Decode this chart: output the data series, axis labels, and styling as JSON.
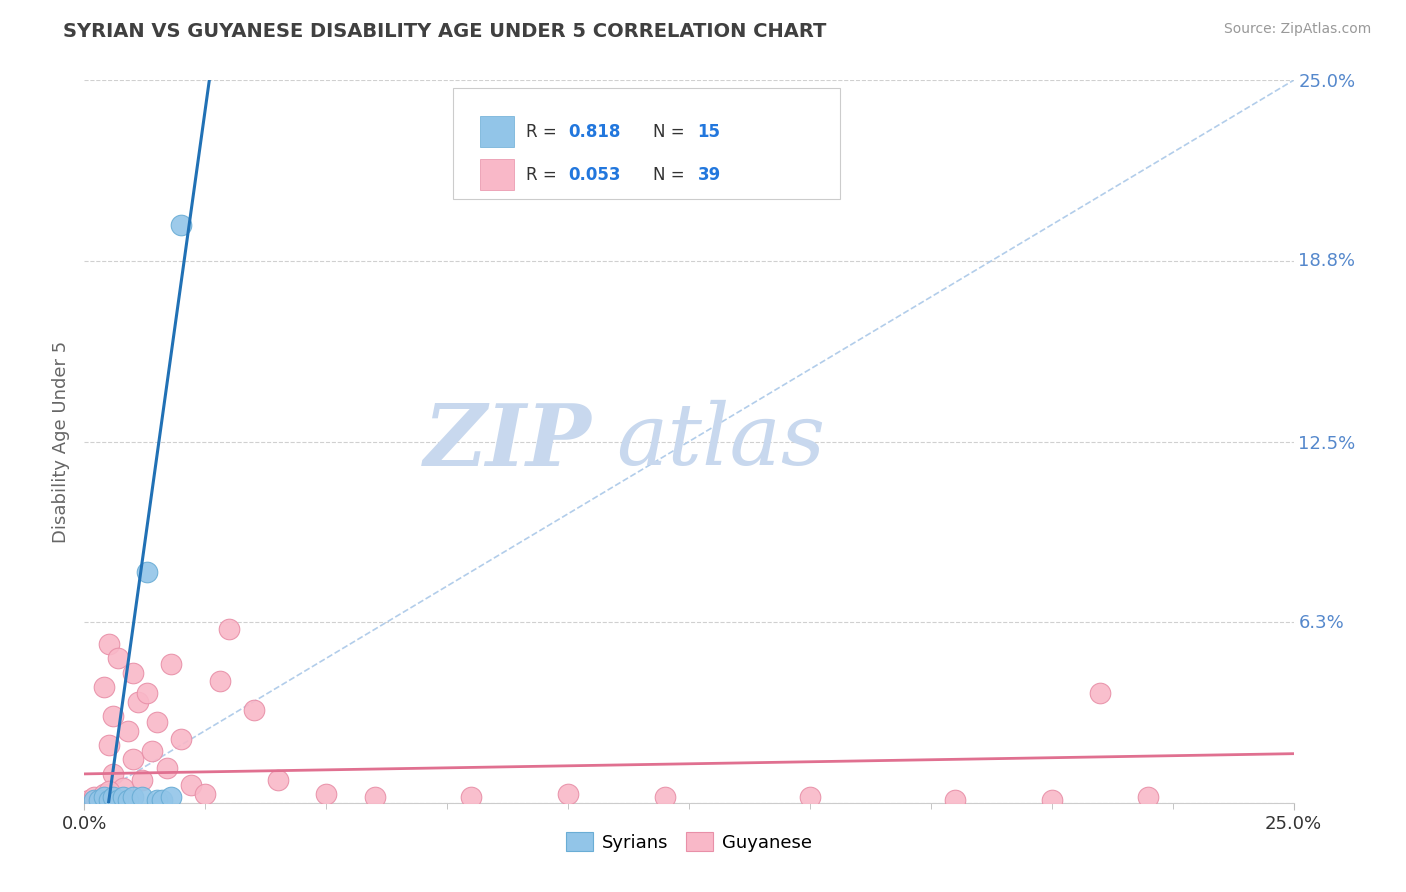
{
  "title": "SYRIAN VS GUYANESE DISABILITY AGE UNDER 5 CORRELATION CHART",
  "source": "Source: ZipAtlas.com",
  "ylabel": "Disability Age Under 5",
  "xlim": [
    0,
    0.25
  ],
  "ylim": [
    0,
    0.25
  ],
  "right_ytick_positions": [
    0.25,
    0.188,
    0.125,
    0.063
  ],
  "right_ytick_labels": [
    "25.0%",
    "18.8%",
    "12.5%",
    "6.3%"
  ],
  "syrian_color": "#92c5e8",
  "syrian_edge_color": "#6aadd5",
  "guyanese_color": "#f9b8c8",
  "guyanese_edge_color": "#e890a8",
  "syrian_line_color": "#2171b5",
  "guyanese_line_color": "#e07090",
  "diag_color": "#aac8e8",
  "background_color": "#ffffff",
  "grid_color": "#d0d0d0",
  "watermark_zip_color": "#c8d8ee",
  "watermark_atlas_color": "#c8d8ee",
  "title_color": "#404040",
  "axis_label_color": "#666666",
  "tick_label_color": "#5588cc",
  "legend_text_color": "#333333",
  "legend_value_color": "#2277dd",
  "syrian_R": "0.818",
  "syrian_N": "15",
  "guyanese_R": "0.053",
  "guyanese_N": "39",
  "syrian_x": [
    0.002,
    0.003,
    0.004,
    0.005,
    0.006,
    0.007,
    0.008,
    0.009,
    0.01,
    0.012,
    0.013,
    0.015,
    0.016,
    0.018,
    0.02
  ],
  "syrian_y": [
    0.001,
    0.001,
    0.002,
    0.001,
    0.002,
    0.001,
    0.002,
    0.001,
    0.002,
    0.002,
    0.08,
    0.001,
    0.001,
    0.002,
    0.2
  ],
  "guyanese_x": [
    0.001,
    0.002,
    0.003,
    0.004,
    0.004,
    0.005,
    0.005,
    0.006,
    0.006,
    0.007,
    0.008,
    0.009,
    0.01,
    0.01,
    0.011,
    0.012,
    0.013,
    0.014,
    0.015,
    0.017,
    0.018,
    0.02,
    0.022,
    0.025,
    0.028,
    0.03,
    0.035,
    0.04,
    0.05,
    0.06,
    0.08,
    0.1,
    0.12,
    0.15,
    0.18,
    0.2,
    0.21,
    0.22,
    0.005
  ],
  "guyanese_y": [
    0.001,
    0.002,
    0.001,
    0.003,
    0.04,
    0.02,
    0.055,
    0.01,
    0.03,
    0.05,
    0.005,
    0.025,
    0.015,
    0.045,
    0.035,
    0.008,
    0.038,
    0.018,
    0.028,
    0.012,
    0.048,
    0.022,
    0.006,
    0.003,
    0.042,
    0.06,
    0.032,
    0.008,
    0.003,
    0.002,
    0.002,
    0.003,
    0.002,
    0.002,
    0.001,
    0.001,
    0.038,
    0.002,
    0.004
  ]
}
